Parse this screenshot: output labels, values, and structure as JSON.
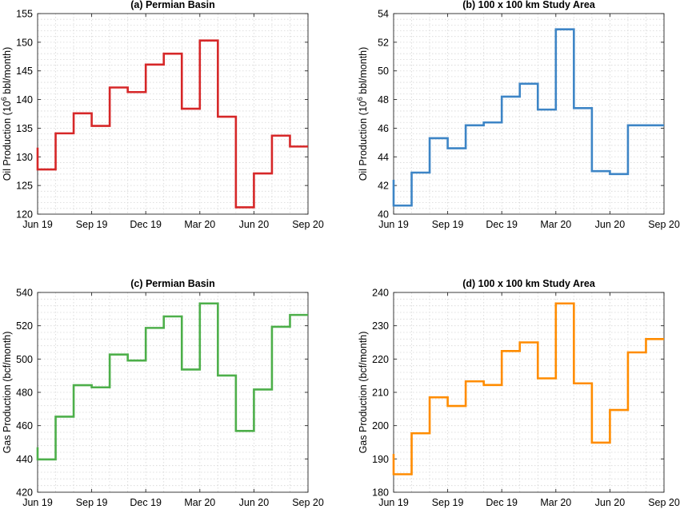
{
  "chart_data": [
    {
      "type": "line",
      "step": "post",
      "title": "(a) Permian Basin",
      "ylabel": "Oil Production (10^6 bbl/month)",
      "ylabel_parts": [
        "Oil Production (10",
        "6",
        " bbl/month)"
      ],
      "xlabel": "",
      "color": "#d62728",
      "x_ticks": [
        "Jun 19",
        "Sep 19",
        "Dec 19",
        "Mar 20",
        "Jun 20",
        "Sep 20"
      ],
      "y_ticks": [
        "120",
        "125",
        "130",
        "135",
        "140",
        "145",
        "150",
        "155"
      ],
      "ylim": [
        120,
        155
      ],
      "grid": true,
      "x": [
        "Jun 19",
        "Jul 19",
        "Aug 19",
        "Sep 19",
        "Oct 19",
        "Nov 19",
        "Dec 19",
        "Jan 20",
        "Feb 20",
        "Mar 20",
        "Apr 20",
        "May 20",
        "Jun 20",
        "Jul 20",
        "Aug 20",
        "Sep 20"
      ],
      "values": [
        131.6,
        127.8,
        134.1,
        137.6,
        135.4,
        142.1,
        141.3,
        146.1,
        148.0,
        138.4,
        150.3,
        137.0,
        121.2,
        127.1,
        133.7,
        131.8
      ]
    },
    {
      "type": "line",
      "step": "post",
      "title": "(b) 100 x 100 km Study Area",
      "ylabel": "Oil Production (10^6 bbl/month)",
      "ylabel_parts": [
        "Oil Production (10",
        "6",
        " bbl/month)"
      ],
      "xlabel": "",
      "color": "#3d85c6",
      "x_ticks": [
        "Jun 19",
        "Sep 19",
        "Dec 19",
        "Mar 20",
        "Jun 20",
        "Sep 20"
      ],
      "y_ticks": [
        "40",
        "42",
        "44",
        "46",
        "48",
        "50",
        "52",
        "54"
      ],
      "ylim": [
        40,
        54
      ],
      "grid": true,
      "x": [
        "Jun 19",
        "Jul 19",
        "Aug 19",
        "Sep 19",
        "Oct 19",
        "Nov 19",
        "Dec 19",
        "Jan 20",
        "Feb 20",
        "Mar 20",
        "Apr 20",
        "May 20",
        "Jun 20",
        "Jul 20",
        "Aug 20",
        "Sep 20"
      ],
      "values": [
        42.4,
        40.6,
        42.9,
        45.3,
        44.6,
        46.2,
        46.4,
        48.2,
        49.1,
        47.3,
        52.9,
        47.4,
        43.0,
        42.8,
        46.2,
        46.2
      ]
    },
    {
      "type": "line",
      "step": "post",
      "title": "(c) Permian Basin",
      "ylabel": "Gas Production (bcf/month)",
      "ylabel_parts": [
        "Gas Production (bcf/month)"
      ],
      "xlabel": "",
      "color": "#4daf4a",
      "x_ticks": [
        "Jun 19",
        "Sep 19",
        "Dec 19",
        "Mar 20",
        "Jun 20",
        "Sep 20"
      ],
      "y_ticks": [
        "420",
        "440",
        "460",
        "480",
        "500",
        "520",
        "540"
      ],
      "ylim": [
        420,
        540
      ],
      "grid": true,
      "x": [
        "Jun 19",
        "Jul 19",
        "Aug 19",
        "Sep 19",
        "Oct 19",
        "Nov 19",
        "Dec 19",
        "Jan 20",
        "Feb 20",
        "Mar 20",
        "Apr 20",
        "May 20",
        "Jun 20",
        "Jul 20",
        "Aug 20",
        "Sep 20"
      ],
      "values": [
        447,
        439.7,
        465.4,
        484.3,
        483.0,
        502.7,
        499.1,
        518.7,
        525.6,
        493.7,
        533.4,
        490.1,
        456.8,
        481.7,
        519.4,
        526.5
      ]
    },
    {
      "type": "line",
      "step": "post",
      "title": "(d) 100 x 100 km Study Area",
      "ylabel": "Gas Production (bcf/month)",
      "ylabel_parts": [
        "Gas Production (bcf/month)"
      ],
      "xlabel": "",
      "color": "#ff8c00",
      "x_ticks": [
        "Jun 19",
        "Sep 19",
        "Dec 19",
        "Mar 20",
        "Jun 20",
        "Sep 20"
      ],
      "y_ticks": [
        "180",
        "190",
        "200",
        "210",
        "220",
        "230",
        "240"
      ],
      "ylim": [
        180,
        240
      ],
      "grid": true,
      "x": [
        "Jun 19",
        "Jul 19",
        "Aug 19",
        "Sep 19",
        "Oct 19",
        "Nov 19",
        "Dec 19",
        "Jan 20",
        "Feb 20",
        "Mar 20",
        "Apr 20",
        "May 20",
        "Jun 20",
        "Jul 20",
        "Aug 20",
        "Sep 20"
      ],
      "values": [
        191.5,
        185.4,
        197.7,
        208.5,
        205.9,
        213.3,
        212.2,
        222.4,
        225.0,
        214.2,
        236.7,
        212.7,
        194.9,
        204.7,
        222.0,
        226.0
      ]
    }
  ]
}
